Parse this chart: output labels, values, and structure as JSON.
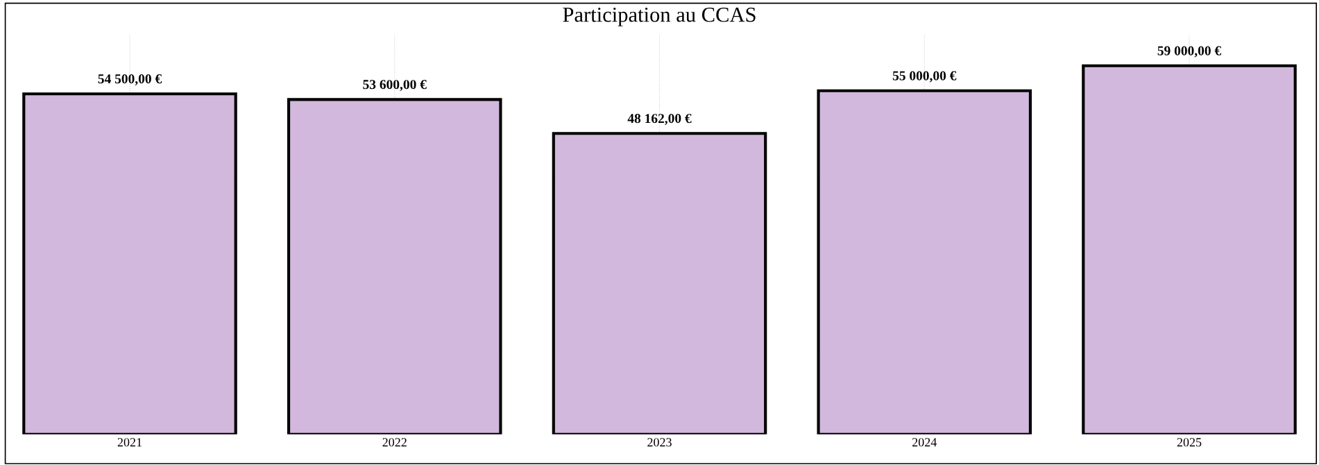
{
  "chart_data": {
    "type": "bar",
    "title": "Participation au CCAS",
    "categories": [
      "2021",
      "2022",
      "2023",
      "2024",
      "2025"
    ],
    "values": [
      54500,
      53600,
      48162,
      55000,
      59000
    ],
    "value_labels": [
      "54 500,00 €",
      "53 600,00 €",
      "48 162,00 €",
      "55 000,00 €",
      "59 000,00 €"
    ],
    "color": "#d2b8dc",
    "grid": "x",
    "legend": false
  }
}
